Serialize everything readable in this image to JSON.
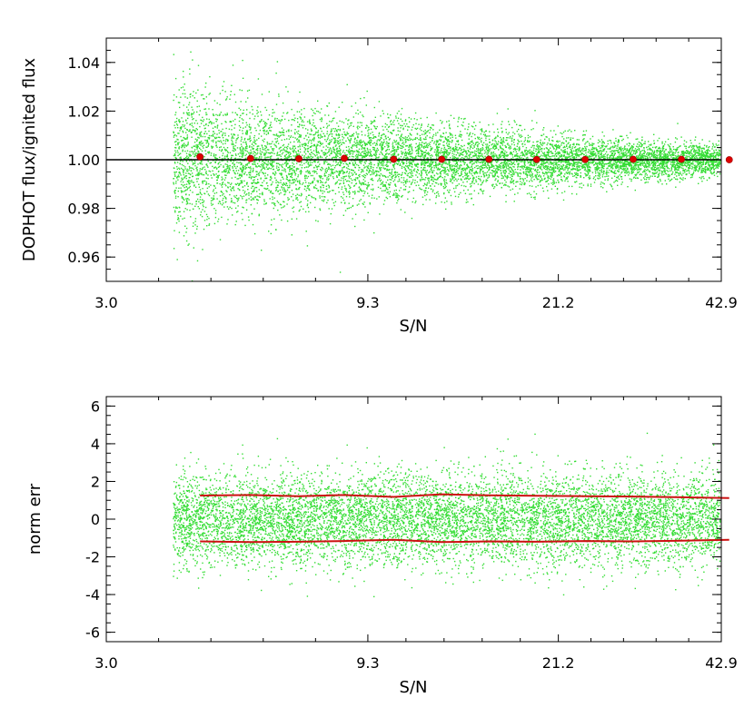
{
  "chart_data": [
    {
      "type": "scatter",
      "xlabel": "S/N",
      "ylabel": "DOPHOT flux/ignited flux",
      "x_scale": "log",
      "xlim": [
        3.0,
        42.9
      ],
      "ylim": [
        0.95,
        1.05
      ],
      "x_ticks": [
        "3.0",
        "9.3",
        "21.2",
        "42.9"
      ],
      "x_tick_values": [
        3.0,
        9.3,
        21.2,
        42.9
      ],
      "y_ticks": [
        "0.96",
        "0.98",
        "1.00",
        "1.02",
        "1.04"
      ],
      "y_tick_values": [
        0.96,
        0.98,
        1.0,
        1.02,
        1.04
      ],
      "reference_line": 1.0,
      "scatter_color": "#33dd33",
      "marker_color": "#dd0000",
      "scatter_x_range": [
        4.0,
        46.0
      ],
      "binned_means": {
        "x": [
          4.5,
          5.6,
          6.9,
          8.4,
          10.4,
          12.8,
          15.7,
          19.3,
          23.8,
          29.3,
          36.1,
          44.4
        ],
        "y": [
          1.0012,
          1.0005,
          1.0004,
          1.0006,
          1.0002,
          1.0002,
          1.0002,
          1.0001,
          1.0001,
          1.0002,
          1.0002,
          1.0
        ]
      },
      "scatter_spread": {
        "x": [
          4.0,
          5.0,
          7.0,
          10.0,
          15.0,
          21.0,
          30.0,
          46.0
        ],
        "sigma": [
          0.016,
          0.013,
          0.0105,
          0.0085,
          0.0065,
          0.005,
          0.004,
          0.0028
        ]
      }
    },
    {
      "type": "scatter",
      "xlabel": "S/N",
      "ylabel": "norm err",
      "x_scale": "log",
      "xlim": [
        3.0,
        42.9
      ],
      "ylim": [
        -6.5,
        6.5
      ],
      "x_ticks": [
        "3.0",
        "9.3",
        "21.2",
        "42.9"
      ],
      "x_tick_values": [
        3.0,
        9.3,
        21.2,
        42.9
      ],
      "y_ticks": [
        "-6",
        "-4",
        "-2",
        "0",
        "2",
        "4",
        "6"
      ],
      "y_tick_values": [
        -6,
        -4,
        -2,
        0,
        2,
        4,
        6
      ],
      "scatter_color": "#33dd33",
      "line_color": "#cc1111",
      "scatter_x_range": [
        4.0,
        46.0
      ],
      "scatter_sigma": 1.2,
      "upper_envelope": {
        "x": [
          4.5,
          5.6,
          6.9,
          8.4,
          10.4,
          12.8,
          15.7,
          19.3,
          23.8,
          29.3,
          36.1,
          44.4
        ],
        "y": [
          1.25,
          1.28,
          1.22,
          1.28,
          1.18,
          1.32,
          1.26,
          1.24,
          1.22,
          1.2,
          1.16,
          1.12
        ]
      },
      "lower_envelope": {
        "x": [
          4.5,
          5.6,
          6.9,
          8.4,
          10.4,
          12.8,
          15.7,
          19.3,
          23.8,
          29.3,
          36.1,
          44.4
        ],
        "y": [
          -1.18,
          -1.22,
          -1.2,
          -1.16,
          -1.1,
          -1.22,
          -1.18,
          -1.2,
          -1.16,
          -1.18,
          -1.14,
          -1.1
        ]
      }
    }
  ]
}
